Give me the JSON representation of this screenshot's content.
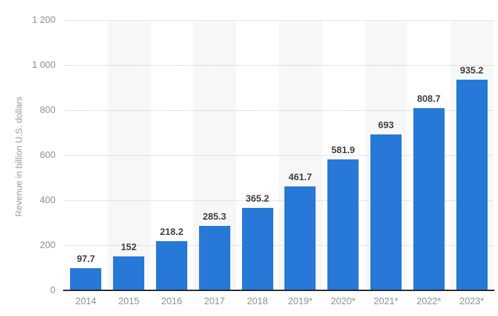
{
  "chart_data": {
    "type": "bar",
    "categories": [
      "2014",
      "2015",
      "2016",
      "2017",
      "2018",
      "2019*",
      "2020*",
      "2021*",
      "2022*",
      "2023*"
    ],
    "values": [
      97.7,
      152,
      218.2,
      285.3,
      365.2,
      461.7,
      581.9,
      693,
      808.7,
      935.2
    ],
    "value_labels": [
      "97.7",
      "152",
      "218.2",
      "285.3",
      "365.2",
      "461.7",
      "581.9",
      "693",
      "808.7",
      "935.2"
    ],
    "title": "",
    "xlabel": "",
    "ylabel": "Revenue in billion U.S. dollars",
    "ylim": [
      0,
      1200
    ],
    "ytick_values": [
      0,
      200,
      400,
      600,
      800,
      1000,
      1200
    ],
    "ytick_labels": [
      "0",
      "200",
      "400",
      "600",
      "800",
      "1 000",
      "1 200"
    ],
    "grid": "horizontal dotted lines at each 200",
    "legend": "none",
    "striped_column_indexes": [
      1,
      3,
      5,
      7,
      9
    ]
  },
  "colors": {
    "bar": "#2878d7",
    "column_band": "#f7f7f7",
    "gridline": "#c9c9c9",
    "axis_line": "#262626",
    "tick_label": "#8f8f8f",
    "value_label": "#3f3f3f",
    "y_title": "#9a9a9a",
    "background": "#ffffff"
  }
}
